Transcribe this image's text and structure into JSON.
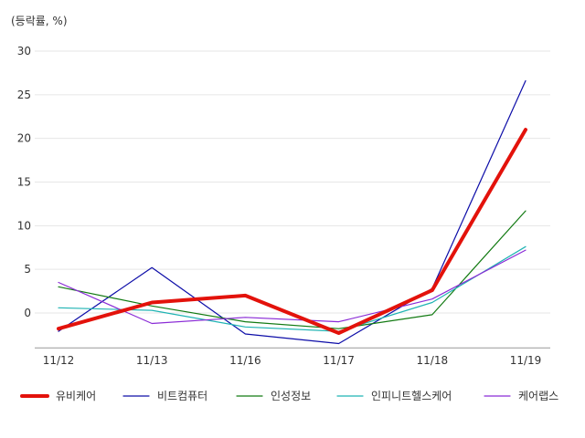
{
  "chart_data": {
    "type": "line",
    "unit_label": "(등락률, %)",
    "categories": [
      "11/12",
      "11/13",
      "11/16",
      "11/17",
      "11/18",
      "11/19"
    ],
    "ylim": [
      -4,
      30
    ],
    "yticks": [
      0,
      5,
      10,
      15,
      20,
      25,
      30
    ],
    "grid": true,
    "legend_position": "bottom",
    "series": [
      {
        "name": "유비케어",
        "color": "#e3120b",
        "width": 4,
        "values": [
          -1.8,
          1.2,
          2.0,
          -2.3,
          2.6,
          21.0
        ]
      },
      {
        "name": "비트컴퓨터",
        "color": "#0d0da8",
        "width": 1.2,
        "values": [
          -2.1,
          5.2,
          -2.4,
          -3.5,
          2.8,
          26.6
        ]
      },
      {
        "name": "인성정보",
        "color": "#127a12",
        "width": 1.2,
        "values": [
          3.0,
          0.8,
          -1.0,
          -1.8,
          -0.2,
          11.7
        ]
      },
      {
        "name": "인피니트헬스케어",
        "color": "#1fb3b3",
        "width": 1.2,
        "values": [
          0.6,
          0.3,
          -1.6,
          -2.1,
          1.2,
          7.6
        ]
      },
      {
        "name": "케어랩스",
        "color": "#8a2bd6",
        "width": 1.2,
        "values": [
          3.5,
          -1.2,
          -0.5,
          -1.0,
          1.6,
          7.2
        ]
      }
    ]
  }
}
